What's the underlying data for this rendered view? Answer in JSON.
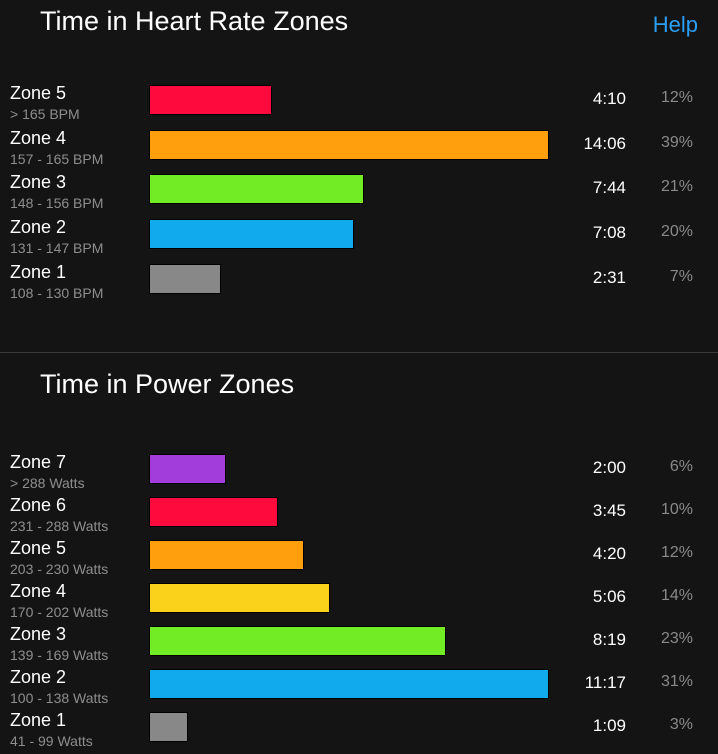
{
  "heart_rate": {
    "title": "Time in Heart Rate Zones",
    "help_label": "Help",
    "zones": [
      {
        "name": "Zone 5",
        "range": "> 165 BPM",
        "time": "4:10",
        "percent": "12%",
        "percent_value": 12,
        "color": "#ff0a3c"
      },
      {
        "name": "Zone 4",
        "range": "157 - 165 BPM",
        "time": "14:06",
        "percent": "39%",
        "percent_value": 39,
        "color": "#ff9f0e"
      },
      {
        "name": "Zone 3",
        "range": "148 - 156 BPM",
        "time": "7:44",
        "percent": "21%",
        "percent_value": 21,
        "color": "#72ec24"
      },
      {
        "name": "Zone 2",
        "range": "131 - 147 BPM",
        "time": "7:08",
        "percent": "20%",
        "percent_value": 20,
        "color": "#10aaed"
      },
      {
        "name": "Zone 1",
        "range": "108 - 130 BPM",
        "time": "2:31",
        "percent": "7%",
        "percent_value": 7,
        "color": "#888888"
      }
    ]
  },
  "power": {
    "title": "Time in Power Zones",
    "zones": [
      {
        "name": "Zone 7",
        "range": "> 288 Watts",
        "time": "2:00",
        "percent": "6%",
        "percent_value": 6,
        "color": "#a23ddb"
      },
      {
        "name": "Zone 6",
        "range": "231 - 288 Watts",
        "time": "3:45",
        "percent": "10%",
        "percent_value": 10,
        "color": "#ff0a3c"
      },
      {
        "name": "Zone 5",
        "range": "203 - 230 Watts",
        "time": "4:20",
        "percent": "12%",
        "percent_value": 12,
        "color": "#ff9f0e"
      },
      {
        "name": "Zone 4",
        "range": "170 - 202 Watts",
        "time": "5:06",
        "percent": "14%",
        "percent_value": 14,
        "color": "#fbd21b"
      },
      {
        "name": "Zone 3",
        "range": "139 - 169 Watts",
        "time": "8:19",
        "percent": "23%",
        "percent_value": 23,
        "color": "#72ec24"
      },
      {
        "name": "Zone 2",
        "range": "100 - 138 Watts",
        "time": "11:17",
        "percent": "31%",
        "percent_value": 31,
        "color": "#10aaed"
      },
      {
        "name": "Zone 1",
        "range": "41 - 99 Watts",
        "time": "1:09",
        "percent": "3%",
        "percent_value": 3,
        "color": "#888888"
      }
    ]
  }
}
